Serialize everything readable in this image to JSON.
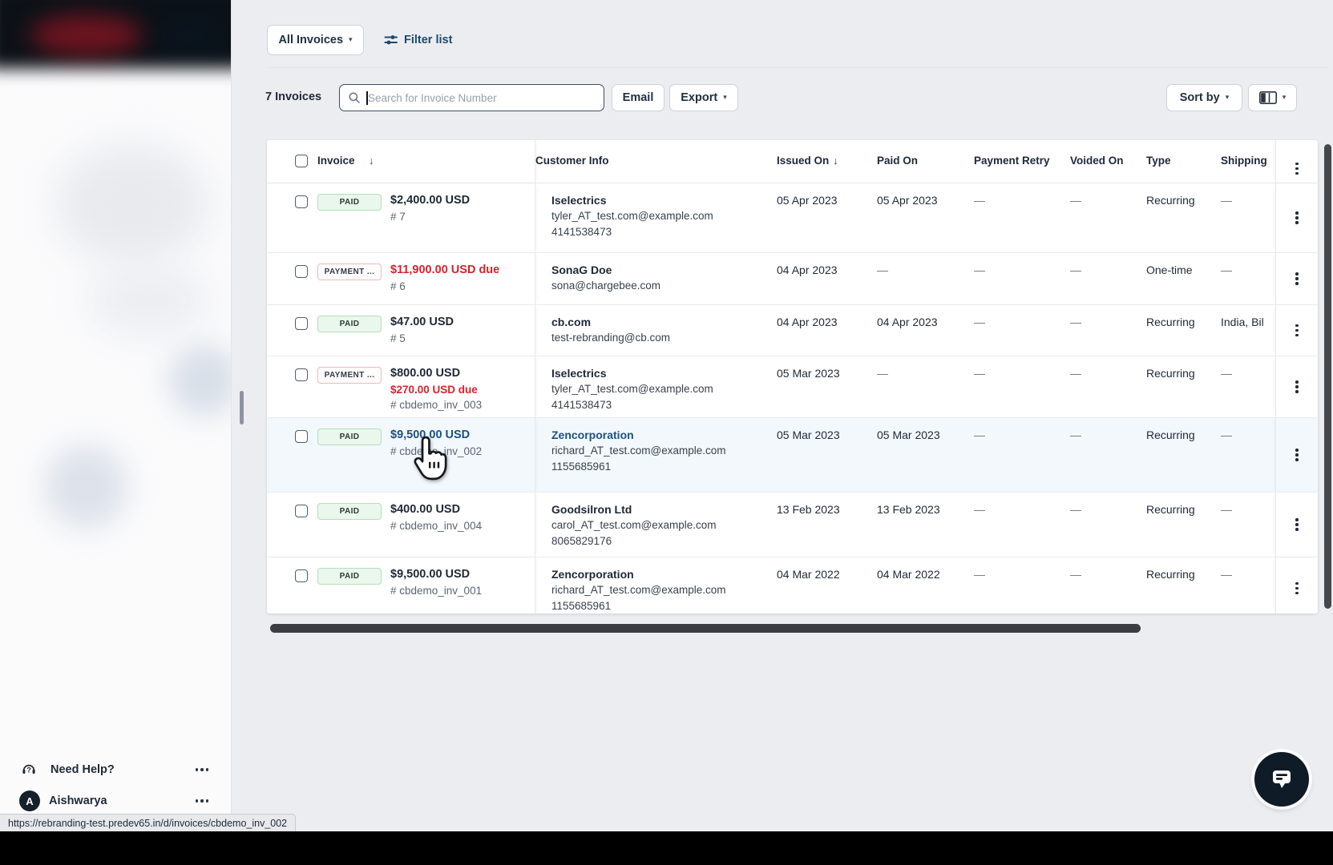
{
  "toolbar": {
    "view_selector": "All Invoices",
    "filter_list": "Filter list",
    "count": "7 Invoices",
    "search_placeholder": "Search for Invoice Number",
    "email": "Email",
    "export": "Export",
    "sort_by": "Sort by"
  },
  "icons": {
    "caret": "▾",
    "sort_desc": "↓"
  },
  "table": {
    "columns": [
      {
        "label": "Invoice",
        "sorted": true
      },
      {
        "label": "Customer Info",
        "sorted": false
      },
      {
        "label": "Issued On",
        "sorted": true
      },
      {
        "label": "Paid On",
        "sorted": false
      },
      {
        "label": "Payment Retry",
        "sorted": false
      },
      {
        "label": "Voided On",
        "sorted": false
      },
      {
        "label": "Type",
        "sorted": false
      },
      {
        "label": "Shipping",
        "sorted": false
      }
    ],
    "rows": [
      {
        "status": "PAID",
        "status_kind": "paid",
        "amount": "$2,400.00 USD",
        "number": "# 7",
        "customer_name": "Iselectrics",
        "customer_email": "tyler_AT_test.com@example.com",
        "customer_phone": "4141538473",
        "issued": "05 Apr 2023",
        "paid": "05 Apr 2023",
        "payment_retry": "—",
        "voided": "—",
        "type": "Recurring",
        "shipping": "—"
      },
      {
        "status": "PAYMENT ...",
        "status_kind": "due",
        "amount": "$11,900.00 USD due",
        "amount_is_due": true,
        "number": "# 6",
        "customer_name": "SonaG Doe",
        "customer_email": "sona@chargebee.com",
        "issued": "04 Apr 2023",
        "paid": "—",
        "payment_retry": "—",
        "voided": "—",
        "type": "One-time",
        "shipping": "—"
      },
      {
        "status": "PAID",
        "status_kind": "paid",
        "amount": "$47.00 USD",
        "number": "# 5",
        "customer_name": "cb.com",
        "customer_email": "test-rebranding@cb.com",
        "issued": "04 Apr 2023",
        "paid": "04 Apr 2023",
        "payment_retry": "—",
        "voided": "—",
        "type": "Recurring",
        "shipping": "India, Bil"
      },
      {
        "status": "PAYMENT ...",
        "status_kind": "due",
        "amount": "$800.00 USD",
        "due_line": "$270.00 USD due",
        "number": "# cbdemo_inv_003",
        "customer_name": "Iselectrics",
        "customer_email": "tyler_AT_test.com@example.com",
        "customer_phone": "4141538473",
        "issued": "05 Mar 2023",
        "paid": "—",
        "payment_retry": "—",
        "voided": "—",
        "type": "Recurring",
        "shipping": "—"
      },
      {
        "status": "PAID",
        "status_kind": "paid",
        "amount": "$9,500.00 USD",
        "amount_is_link": true,
        "number": "# cbdemo_inv_002",
        "customer_name": "Zencorporation",
        "customer_name_is_link": true,
        "customer_email": "richard_AT_test.com@example.com",
        "customer_phone": "1155685961",
        "issued": "05 Mar 2023",
        "paid": "05 Mar 2023",
        "payment_retry": "—",
        "voided": "—",
        "type": "Recurring",
        "shipping": "—",
        "hovered": true
      },
      {
        "status": "PAID",
        "status_kind": "paid",
        "amount": "$400.00 USD",
        "number": "# cbdemo_inv_004",
        "customer_name": "Goodsilron Ltd",
        "customer_email": "carol_AT_test.com@example.com",
        "customer_phone": "8065829176",
        "issued": "13 Feb 2023",
        "paid": "13 Feb 2023",
        "payment_retry": "—",
        "voided": "—",
        "type": "Recurring",
        "shipping": "—"
      },
      {
        "status": "PAID",
        "status_kind": "paid",
        "amount": "$9,500.00 USD",
        "number": "# cbdemo_inv_001",
        "customer_name": "Zencorporation",
        "customer_email": "richard_AT_test.com@example.com",
        "customer_phone": "1155685961",
        "issued": "04 Mar 2022",
        "paid": "04 Mar 2022",
        "payment_retry": "—",
        "voided": "—",
        "type": "Recurring",
        "shipping": "—"
      }
    ]
  },
  "sidebar": {
    "need_help": "Need Help?",
    "user_name": "Aishwarya",
    "avatar_initial": "A"
  },
  "status_bar": {
    "url": "https://rebranding-test.predev65.in/d/invoices/cbdemo_inv_002"
  },
  "colors": {
    "link_blue": "#1a5285",
    "due_red": "#d8232e",
    "paid_badge_bg": "#e9f7ec",
    "paid_badge_border": "#b5deb9",
    "due_badge_border": "#ecb9bd",
    "hover_row_bg": "#f3f8fc"
  }
}
